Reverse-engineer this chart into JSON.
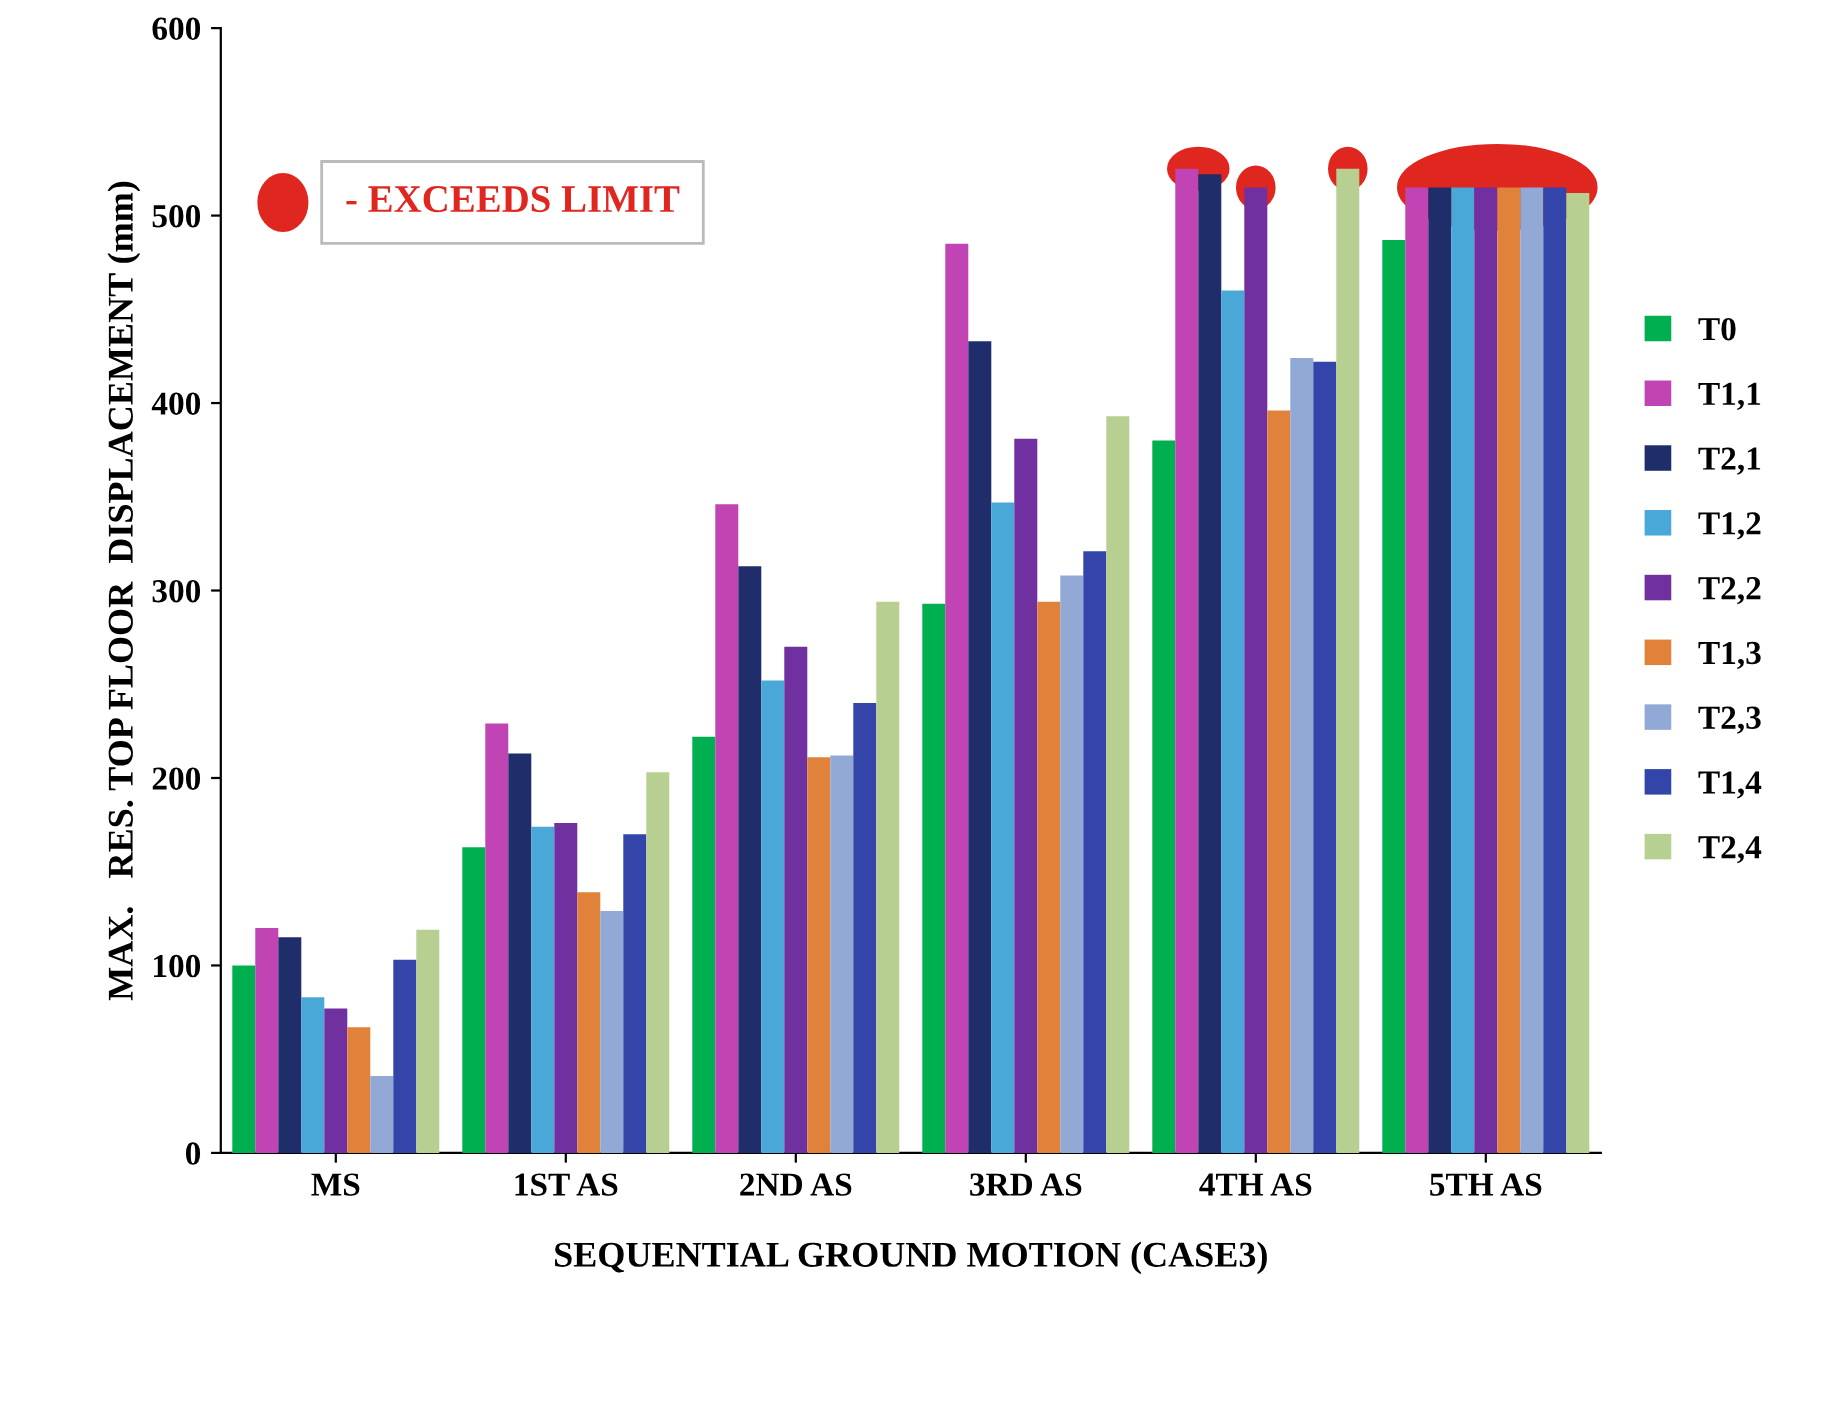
{
  "chart_data": {
    "type": "bar",
    "xlabel": "SEQUENTIAL GROUND MOTION (CASE3)",
    "ylabel": "MAX.   RES. TOP FLOOR  DISPLACEMENT (mm)",
    "categories": [
      "MS",
      "1ST AS",
      "2ND AS",
      "3RD AS",
      "4TH AS",
      "5TH AS"
    ],
    "series": [
      {
        "name": "T0",
        "color": "#00b050",
        "values": [
          100,
          163,
          222,
          293,
          380,
          487
        ]
      },
      {
        "name": "T1,1",
        "color": "#c044b4",
        "values": [
          120,
          229,
          346,
          485,
          525,
          515
        ]
      },
      {
        "name": "T2,1",
        "color": "#1f2d6b",
        "values": [
          115,
          213,
          313,
          433,
          522,
          515
        ]
      },
      {
        "name": "T1,2",
        "color": "#4aa8d8",
        "values": [
          83,
          174,
          252,
          347,
          460,
          515
        ]
      },
      {
        "name": "T2,2",
        "color": "#7030a0",
        "values": [
          77,
          176,
          270,
          381,
          515,
          515
        ]
      },
      {
        "name": "T1,3",
        "color": "#e0823a",
        "values": [
          67,
          139,
          211,
          294,
          396,
          515
        ]
      },
      {
        "name": "T2,3",
        "color": "#92a9d6",
        "values": [
          41,
          129,
          212,
          308,
          424,
          515
        ]
      },
      {
        "name": "T1,4",
        "color": "#3345a8",
        "values": [
          103,
          170,
          240,
          321,
          422,
          515
        ]
      },
      {
        "name": "T2,4",
        "color": "#b7cf90",
        "values": [
          119,
          203,
          294,
          393,
          525,
          512
        ]
      }
    ],
    "ylim": [
      0,
      600
    ],
    "yticks": [
      0,
      100,
      200,
      300,
      400,
      500,
      600
    ],
    "grid": false,
    "legend": "right",
    "annotations": [
      "- EXCEEDS LIMIT"
    ]
  }
}
